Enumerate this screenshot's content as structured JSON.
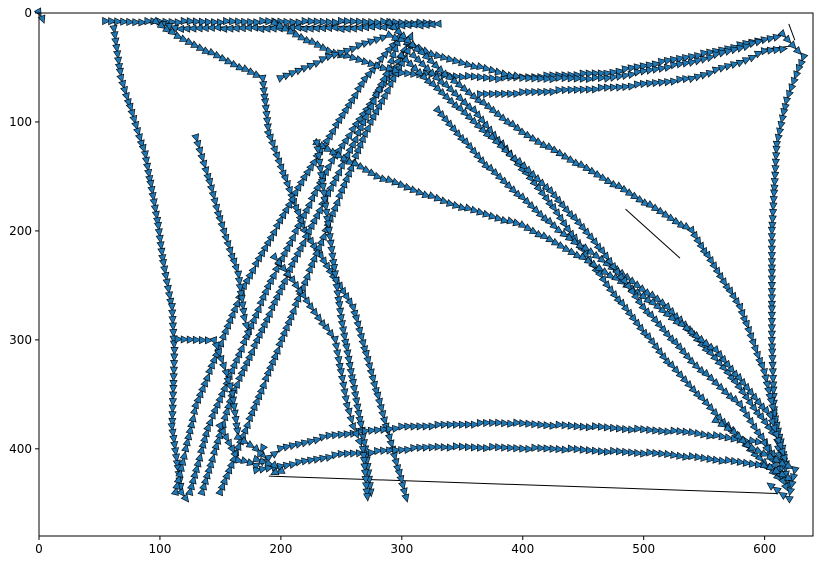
{
  "chart_data": {
    "type": "line",
    "title": "",
    "xlabel": "",
    "ylabel": "",
    "xlim": [
      0,
      640
    ],
    "ylim": [
      480,
      0
    ],
    "y_inverted": true,
    "grid": false,
    "legend": "none",
    "marker": "triangle, direction of travel",
    "colors": {
      "marker_fill": "#1f77b4",
      "marker_edge": "#000000",
      "line": "#000000",
      "axes": "#000000"
    },
    "x_ticks": [
      0,
      100,
      200,
      300,
      400,
      500,
      600
    ],
    "x_tick_labels": [
      "0",
      "100",
      "200",
      "300",
      "400",
      "500",
      "600"
    ],
    "y_ticks": [
      0,
      100,
      200,
      300,
      400
    ],
    "y_tick_labels": [
      "0",
      "100",
      "200",
      "300",
      "400"
    ],
    "series": [
      {
        "marker_spacing": 6,
        "values": [
          [
            0,
            0
          ],
          [
            3,
            6
          ],
          [
            5,
            12
          ]
        ]
      },
      {
        "marker_spacing": 6,
        "values": [
          [
            55,
            8
          ],
          [
            275,
            8
          ],
          [
            330,
            10
          ],
          [
            260,
            14
          ],
          [
            112,
            14
          ],
          [
            97,
            8
          ],
          [
            115,
            22
          ],
          [
            185,
            60
          ],
          [
            190,
            110
          ],
          [
            220,
            200
          ],
          [
            260,
            270
          ],
          [
            275,
            330
          ],
          [
            305,
            450
          ]
        ]
      },
      {
        "marker_spacing": 6,
        "values": [
          [
            62,
            15
          ],
          [
            68,
            60
          ],
          [
            88,
            130
          ],
          [
            98,
            190
          ],
          [
            103,
            230
          ],
          [
            110,
            270
          ],
          [
            112,
            310
          ],
          [
            110,
            380
          ],
          [
            118,
            440
          ],
          [
            125,
            450
          ]
        ]
      },
      {
        "marker_spacing": 6,
        "values": [
          [
            125,
            440
          ],
          [
            140,
            380
          ],
          [
            190,
            250
          ],
          [
            240,
            140
          ],
          [
            300,
            40
          ],
          [
            310,
            15
          ]
        ]
      },
      {
        "marker_spacing": 6,
        "values": [
          [
            113,
            440
          ],
          [
            130,
            360
          ],
          [
            170,
            250
          ],
          [
            220,
            150
          ],
          [
            270,
            60
          ],
          [
            300,
            20
          ]
        ]
      },
      {
        "marker_spacing": 6,
        "values": [
          [
            135,
            440
          ],
          [
            160,
            350
          ],
          [
            210,
            230
          ],
          [
            260,
            120
          ],
          [
            290,
            50
          ],
          [
            300,
            15
          ]
        ]
      },
      {
        "marker_spacing": 6,
        "values": [
          [
            150,
            440
          ],
          [
            190,
            330
          ],
          [
            230,
            220
          ],
          [
            270,
            110
          ],
          [
            310,
            25
          ]
        ]
      },
      {
        "marker_spacing": 6,
        "values": [
          [
            195,
            10
          ],
          [
            240,
            35
          ],
          [
            300,
            55
          ],
          [
            380,
            60
          ],
          [
            470,
            55
          ],
          [
            560,
            35
          ],
          [
            615,
            20
          ],
          [
            632,
            40
          ],
          [
            618,
            80
          ],
          [
            610,
            120
          ],
          [
            606,
            200
          ],
          [
            606,
            300
          ],
          [
            608,
            370
          ],
          [
            615,
            430
          ]
        ]
      },
      {
        "marker_spacing": 6,
        "values": [
          [
            200,
            60
          ],
          [
            240,
            40
          ],
          [
            290,
            20
          ],
          [
            330,
            40
          ],
          [
            400,
            60
          ],
          [
            470,
            60
          ],
          [
            540,
            45
          ],
          [
            600,
            25
          ]
        ]
      },
      {
        "marker_spacing": 6,
        "values": [
          [
            290,
            10
          ],
          [
            340,
            60
          ],
          [
            400,
            110
          ],
          [
            480,
            160
          ],
          [
            540,
            200
          ],
          [
            580,
            270
          ],
          [
            600,
            330
          ],
          [
            615,
            400
          ],
          [
            620,
            440
          ]
        ]
      },
      {
        "marker_spacing": 6,
        "values": [
          [
            310,
            40
          ],
          [
            360,
            90
          ],
          [
            420,
            170
          ],
          [
            470,
            250
          ],
          [
            520,
            320
          ],
          [
            570,
            380
          ],
          [
            615,
            430
          ]
        ]
      },
      {
        "marker_spacing": 6,
        "values": [
          [
            330,
            90
          ],
          [
            370,
            140
          ],
          [
            430,
            200
          ],
          [
            470,
            230
          ],
          [
            520,
            270
          ],
          [
            570,
            330
          ],
          [
            610,
            390
          ]
        ]
      },
      {
        "marker_spacing": 6,
        "values": [
          [
            230,
            120
          ],
          [
            280,
            150
          ],
          [
            340,
            175
          ],
          [
            400,
            195
          ],
          [
            450,
            225
          ],
          [
            500,
            260
          ],
          [
            560,
            310
          ],
          [
            605,
            370
          ],
          [
            620,
            420
          ]
        ]
      },
      {
        "marker_spacing": 6,
        "values": [
          [
            300,
            40
          ],
          [
            360,
            100
          ],
          [
            420,
            160
          ],
          [
            460,
            210
          ],
          [
            500,
            270
          ],
          [
            540,
            320
          ],
          [
            580,
            360
          ],
          [
            610,
            410
          ]
        ]
      },
      {
        "marker_spacing": 6,
        "values": [
          [
            230,
            120
          ],
          [
            240,
            200
          ],
          [
            250,
            280
          ],
          [
            260,
            340
          ],
          [
            270,
            400
          ],
          [
            275,
            445
          ]
        ]
      },
      {
        "marker_spacing": 6,
        "values": [
          [
            150,
            380
          ],
          [
            165,
            410
          ],
          [
            180,
            415
          ],
          [
            200,
            400
          ],
          [
            240,
            388
          ],
          [
            300,
            380
          ],
          [
            380,
            376
          ],
          [
            460,
            380
          ],
          [
            540,
            385
          ],
          [
            600,
            395
          ],
          [
            620,
            440
          ]
        ]
      },
      {
        "marker_spacing": 6,
        "values": [
          [
            180,
            420
          ],
          [
            250,
            405
          ],
          [
            330,
            398
          ],
          [
            430,
            400
          ],
          [
            520,
            405
          ],
          [
            600,
            415
          ],
          [
            625,
            430
          ]
        ]
      },
      {
        "marker_spacing": 6,
        "values": [
          [
            115,
            300
          ],
          [
            145,
            300
          ],
          [
            155,
            330
          ],
          [
            160,
            350
          ],
          [
            165,
            390
          ],
          [
            180,
            400
          ],
          [
            190,
            410
          ]
        ]
      },
      {
        "marker_spacing": 6,
        "values": [
          [
            185,
            400
          ],
          [
            180,
            410
          ],
          [
            195,
            415
          ],
          [
            200,
            420
          ],
          [
            190,
            425
          ]
        ]
      },
      {
        "marker_spacing": 6,
        "values": [
          [
            130,
            115
          ],
          [
            140,
            150
          ],
          [
            150,
            190
          ],
          [
            165,
            240
          ],
          [
            170,
            280
          ],
          [
            175,
            300
          ]
        ]
      },
      {
        "marker_spacing": 6,
        "values": [
          [
            195,
            225
          ],
          [
            210,
            245
          ],
          [
            225,
            270
          ],
          [
            245,
            300
          ],
          [
            250,
            330
          ],
          [
            255,
            360
          ],
          [
            260,
            380
          ],
          [
            268,
            400
          ],
          [
            272,
            450
          ]
        ]
      },
      {
        "marker_spacing": 6,
        "values": [
          [
            560,
            375
          ],
          [
            575,
            385
          ],
          [
            590,
            400
          ],
          [
            610,
            410
          ],
          [
            625,
            420
          ],
          [
            620,
            445
          ],
          [
            610,
            438
          ],
          [
            600,
            430
          ]
        ]
      },
      {
        "marker_spacing": 6,
        "values": [
          [
            365,
            75
          ],
          [
            420,
            72
          ],
          [
            480,
            68
          ],
          [
            540,
            60
          ],
          [
            580,
            45
          ],
          [
            600,
            35
          ],
          [
            620,
            32
          ]
        ]
      }
    ],
    "plain_segments": [
      [
        [
          60,
          9
        ],
        [
          320,
          9
        ]
      ],
      [
        [
          120,
          13
        ],
        [
          295,
          12
        ]
      ],
      [
        [
          190,
          425
        ],
        [
          610,
          441
        ]
      ],
      [
        [
          485,
          180
        ],
        [
          530,
          225
        ]
      ],
      [
        [
          600,
          33
        ],
        [
          625,
          30
        ]
      ],
      [
        [
          620,
          10
        ],
        [
          625,
          25
        ]
      ]
    ]
  }
}
